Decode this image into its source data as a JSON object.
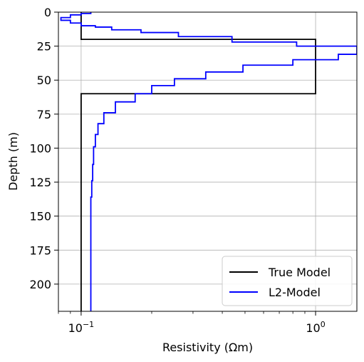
{
  "chart_data": {
    "type": "line",
    "xlabel": "Resistivity (Ωm)",
    "ylabel": "Depth (m)",
    "xscale": "log",
    "xlim": [
      0.08,
      1.5
    ],
    "ylim": [
      220,
      0
    ],
    "y_inverted": true,
    "grid": true,
    "legend_position": "lower-right",
    "x_tick_labels": [
      {
        "value": 0.1,
        "base": "10",
        "exp": "−1"
      },
      {
        "value": 1,
        "base": "10",
        "exp": "0"
      }
    ],
    "y_ticks": [
      0,
      25,
      50,
      75,
      100,
      125,
      150,
      175,
      200
    ],
    "series": [
      {
        "name": "True Model",
        "color": "#000000",
        "x": [
          0.1,
          0.1,
          1.0,
          1.0,
          0.1,
          0.1
        ],
        "y": [
          0,
          20,
          20,
          60,
          60,
          220
        ]
      },
      {
        "name": "L2-Model",
        "color": "#0000ff",
        "x": [
          0.11,
          0.11,
          0.1,
          0.1,
          0.09,
          0.09,
          0.082,
          0.082,
          0.09,
          0.09,
          0.1,
          0.1,
          0.115,
          0.115,
          0.135,
          0.135,
          0.18,
          0.18,
          0.26,
          0.26,
          0.44,
          0.44,
          0.83,
          0.83,
          1.5,
          1.5,
          1.5,
          1.5,
          1.25,
          1.25,
          0.8,
          0.8,
          0.49,
          0.49,
          0.34,
          0.34,
          0.25,
          0.25,
          0.2,
          0.2,
          0.17,
          0.17,
          0.14,
          0.14,
          0.125,
          0.125,
          0.118,
          0.118,
          0.115,
          0.115,
          0.113,
          0.113,
          0.112,
          0.112,
          0.111,
          0.111,
          0.11,
          0.11
        ],
        "y": [
          0,
          1,
          1,
          2,
          2,
          4,
          4,
          6,
          6,
          8,
          8,
          10,
          10,
          11,
          11,
          13,
          13,
          15,
          15,
          18,
          18,
          22,
          22,
          25,
          25,
          29,
          29,
          31,
          31,
          35,
          35,
          39,
          39,
          44,
          44,
          49,
          49,
          54,
          54,
          60,
          60,
          66,
          66,
          74,
          74,
          82,
          82,
          90,
          90,
          99,
          99,
          112,
          112,
          124,
          124,
          136,
          136,
          220
        ]
      }
    ]
  }
}
